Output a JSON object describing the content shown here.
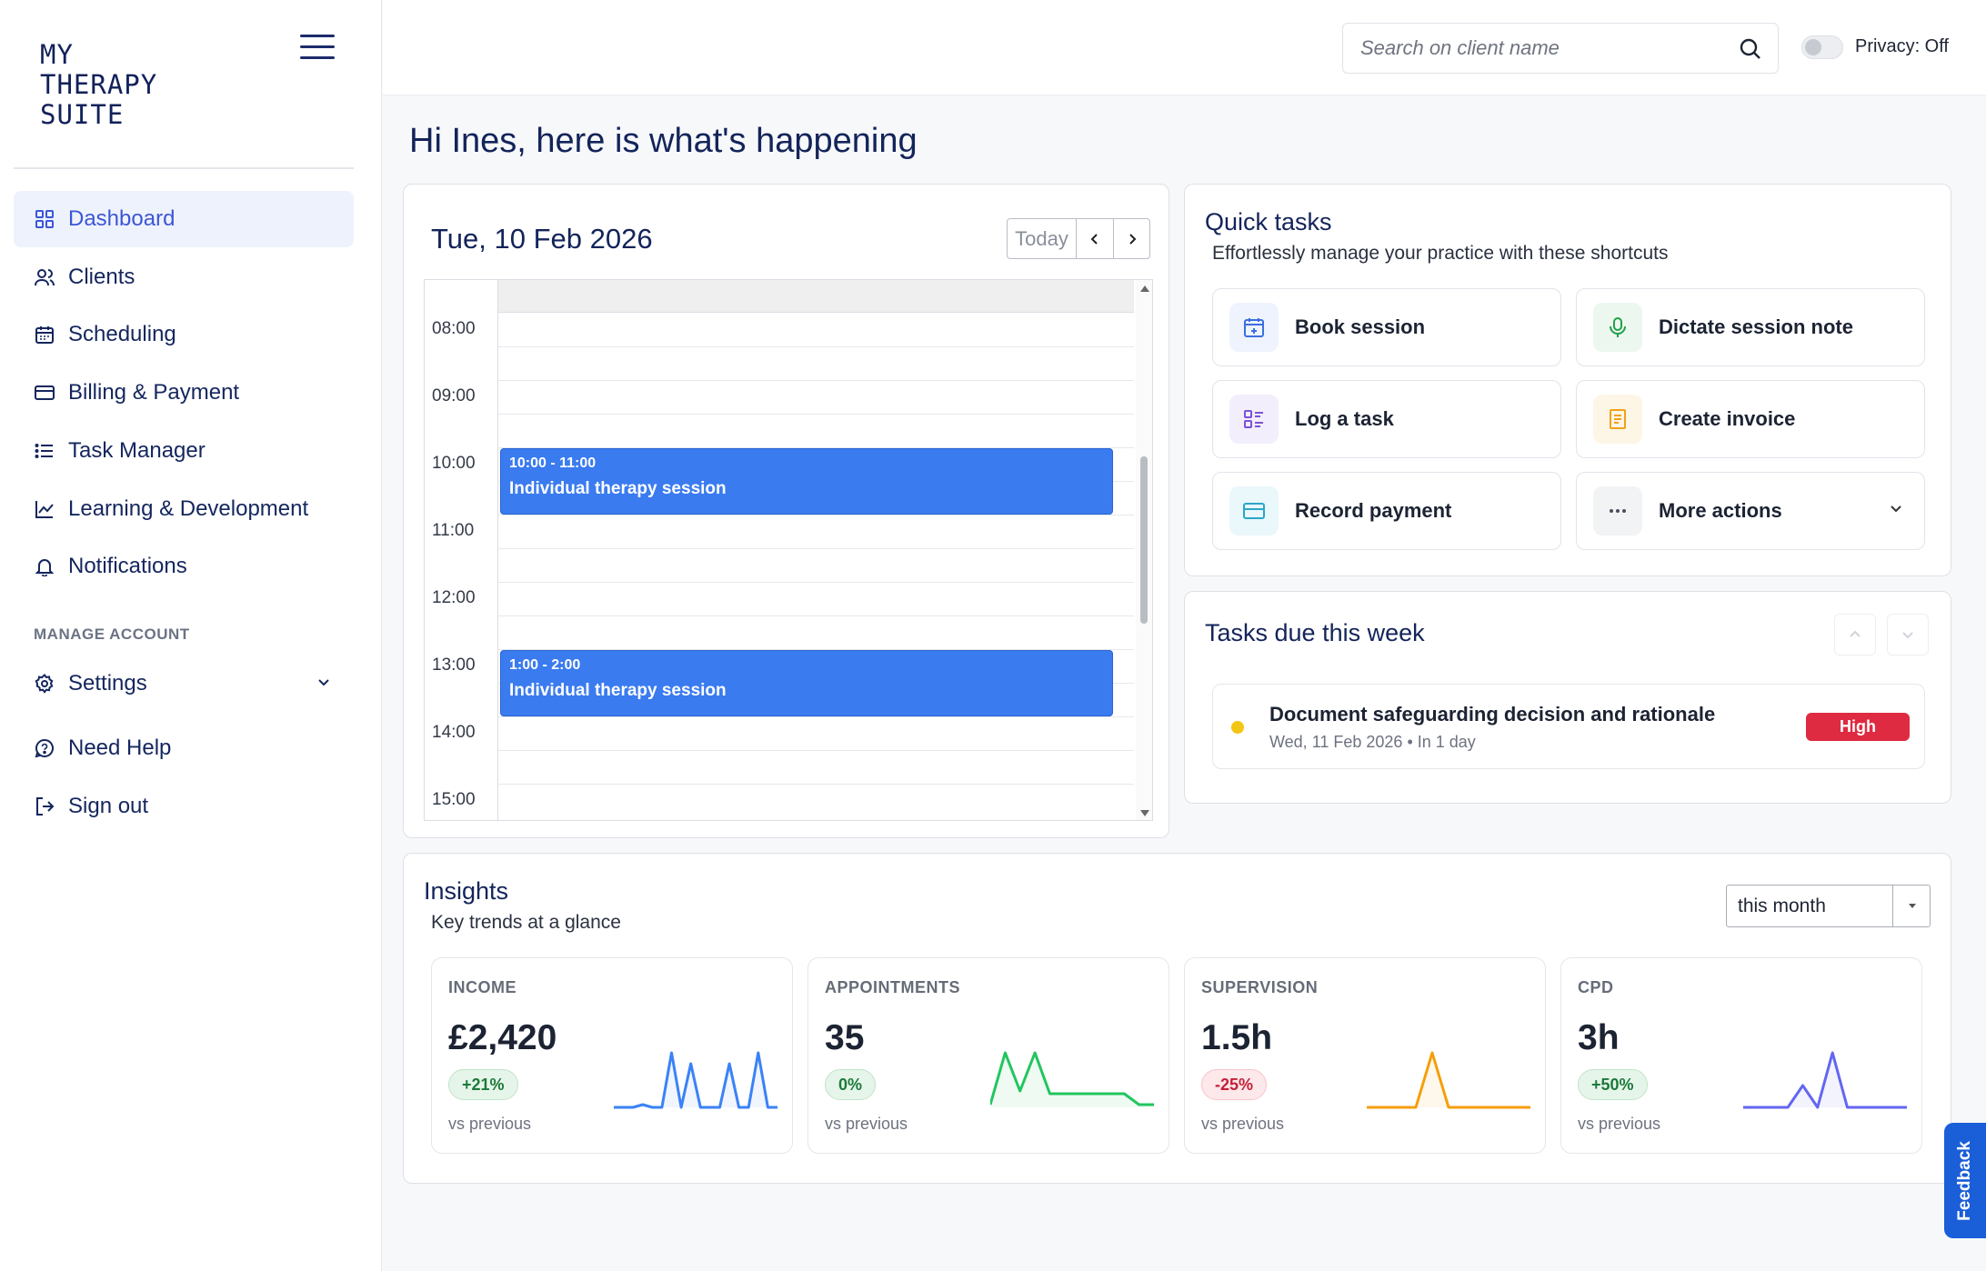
{
  "app": {
    "logo": "MY\nTHERAPY\nSUITE"
  },
  "sidebar": {
    "items": [
      {
        "label": "Dashboard",
        "icon": "grid-icon",
        "active": true
      },
      {
        "label": "Clients",
        "icon": "users-icon"
      },
      {
        "label": "Scheduling",
        "icon": "calendar-icon"
      },
      {
        "label": "Billing & Payment",
        "icon": "credit-card-icon"
      },
      {
        "label": "Task Manager",
        "icon": "list-icon"
      },
      {
        "label": "Learning & Development",
        "icon": "chart-line-icon"
      },
      {
        "label": "Notifications",
        "icon": "bell-icon"
      }
    ],
    "section_label": "MANAGE ACCOUNT",
    "account_items": [
      {
        "label": "Settings",
        "icon": "gear-icon"
      },
      {
        "label": "Need Help",
        "icon": "help-chat-icon"
      },
      {
        "label": "Sign out",
        "icon": "sign-out-icon"
      }
    ]
  },
  "topbar": {
    "search_placeholder": "Search on client name",
    "privacy_label": "Privacy: Off"
  },
  "greeting": "Hi Ines, here is what's happening",
  "calendar": {
    "date": "Tue, 10 Feb 2026",
    "today_label": "Today",
    "times": [
      "08:00",
      "09:00",
      "10:00",
      "11:00",
      "12:00",
      "13:00",
      "14:00",
      "15:00"
    ],
    "events": [
      {
        "time": "10:00 - 11:00",
        "name": "Individual therapy session"
      },
      {
        "time": "1:00 - 2:00",
        "name": "Individual therapy session"
      }
    ]
  },
  "quick_tasks": {
    "title": "Quick tasks",
    "subtitle": "Effortlessly manage your practice with these shortcuts",
    "items": [
      {
        "label": "Book session",
        "icon": "calendar-plus-icon",
        "color": "#3b6fe0",
        "bg": "#eef3fd"
      },
      {
        "label": "Dictate session note",
        "icon": "microphone-icon",
        "color": "#22a04b",
        "bg": "#ecf7ef"
      },
      {
        "label": "Log a task",
        "icon": "checklist-icon",
        "color": "#7b52d6",
        "bg": "#f2eefc"
      },
      {
        "label": "Create invoice",
        "icon": "invoice-icon",
        "color": "#f0a21a",
        "bg": "#fdf5e6"
      },
      {
        "label": "Record payment",
        "icon": "credit-card-icon",
        "color": "#2aa7c8",
        "bg": "#eaf7fb"
      },
      {
        "label": "More actions",
        "icon": "more-dots-icon",
        "color": "#4a4f5c",
        "bg": "#f2f3f5"
      }
    ]
  },
  "tasks_due": {
    "title": "Tasks due this week",
    "items": [
      {
        "name": "Document safeguarding decision and rationale",
        "date": "Wed, 11 Feb 2026",
        "due": "In 1 day",
        "priority": "High"
      }
    ]
  },
  "insights": {
    "title": "Insights",
    "subtitle": "Key trends at a glance",
    "period": "this month",
    "metrics": [
      {
        "label": "INCOME",
        "value": "£2,420",
        "change": "+21%",
        "vs": "vs previous",
        "color": "#3b82f6",
        "trend": [
          0,
          0,
          0,
          0.05,
          0,
          0,
          1,
          0,
          0.8,
          0,
          0,
          0,
          0.8,
          0,
          0,
          1,
          0,
          0
        ]
      },
      {
        "label": "APPOINTMENTS",
        "value": "35",
        "change": "0%",
        "vs": "vs previous",
        "color": "#22c55e",
        "trend": [
          0.05,
          1,
          0.3,
          1,
          0.25,
          0.25,
          0.25,
          0.25,
          0.25,
          0.25,
          0.05,
          0.05
        ]
      },
      {
        "label": "SUPERVISION",
        "value": "1.5h",
        "change": "-25%",
        "vs": "vs previous",
        "color": "#f59e0b",
        "trend": [
          0,
          0,
          0,
          0,
          1,
          0,
          0,
          0,
          0,
          0,
          0
        ]
      },
      {
        "label": "CPD",
        "value": "3h",
        "change": "+50%",
        "vs": "vs previous",
        "color": "#6366f1",
        "trend": [
          0,
          0,
          0,
          0,
          0.4,
          0,
          1,
          0,
          0,
          0,
          0,
          0
        ]
      }
    ]
  },
  "feedback_label": "Feedback"
}
